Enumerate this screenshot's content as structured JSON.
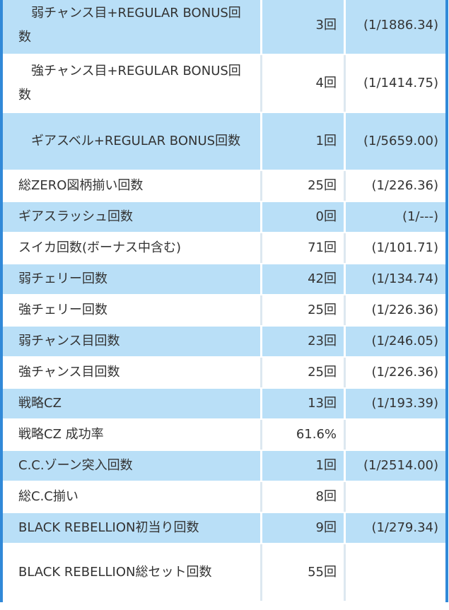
{
  "table": {
    "rows": [
      [
        "弱チャンス目+REGULAR BONUS回数",
        "3回",
        "(1/1886.34)"
      ],
      [
        "強チャンス目+REGULAR BONUS回数",
        "4回",
        "(1/1414.75)"
      ],
      [
        "ギアスベル+REGULAR BONUS回数",
        "1回",
        "(1/5659.00)"
      ],
      [
        "総ZERO図柄揃い回数",
        "25回",
        "(1/226.36)"
      ],
      [
        "ギアスラッシュ回数",
        "0回",
        "(1/---)"
      ],
      [
        "スイカ回数(ボーナス中含む)",
        "71回",
        "(1/101.71)"
      ],
      [
        "弱チェリー回数",
        "42回",
        "(1/134.74)"
      ],
      [
        "強チェリー回数",
        "25回",
        "(1/226.36)"
      ],
      [
        "弱チャンス目回数",
        "23回",
        "(1/246.05)"
      ],
      [
        "強チャンス目回数",
        "25回",
        "(1/226.36)"
      ],
      [
        "戦略CZ",
        "13回",
        "(1/193.39)"
      ],
      [
        "戦略CZ 成功率",
        "61.6%"
      ],
      [
        "C.C.ゾーン突入回数",
        "1回",
        "(1/2514.00)"
      ],
      [
        "総C.C揃い",
        "8回"
      ],
      [
        "BLACK REBELLION初当り回数",
        "9回",
        "(1/279.34)"
      ],
      [
        "BLACK REBELLION総セット回数",
        "55回"
      ]
    ]
  }
}
